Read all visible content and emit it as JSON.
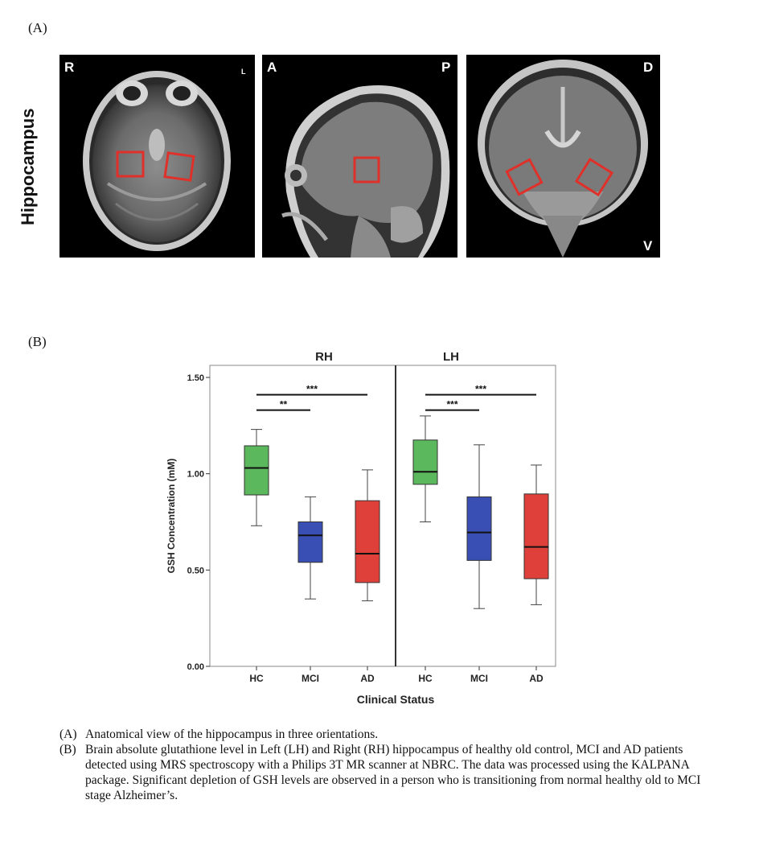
{
  "figure": {
    "panel_a_label": "(A)",
    "panel_b_label": "(B)",
    "region_label": "Hippocampus",
    "mri": {
      "axial": {
        "orient_left": "R",
        "orient_right": "L"
      },
      "sagittal": {
        "orient_left": "A",
        "orient_right": "P"
      },
      "coronal": {
        "orient_top": "D",
        "orient_bottom": "V"
      },
      "roi_color": "#e0302a"
    }
  },
  "chart_data": {
    "type": "box",
    "ylabel": "GSH Concentration (mM)",
    "xlabel": "Clinical Status",
    "ylim": [
      0,
      1.5
    ],
    "yticks": [
      "0.00",
      "0.50",
      "1.00",
      "1.50"
    ],
    "panels": [
      {
        "title": "RH",
        "groups": [
          {
            "name": "HC",
            "color": "#5cb85c",
            "min": 0.73,
            "q1": 0.89,
            "median": 1.03,
            "q3": 1.145,
            "max": 1.23
          },
          {
            "name": "MCI",
            "color": "#3a4fb4",
            "min": 0.35,
            "q1": 0.54,
            "median": 0.68,
            "q3": 0.75,
            "max": 0.88
          },
          {
            "name": "AD",
            "color": "#e0403a",
            "min": 0.34,
            "q1": 0.435,
            "median": 0.585,
            "q3": 0.86,
            "max": 1.02
          }
        ],
        "significance": [
          {
            "from": "HC",
            "to": "AD",
            "label": "***",
            "y": 1.41
          },
          {
            "from": "HC",
            "to": "MCI",
            "label": "**",
            "y": 1.33
          }
        ]
      },
      {
        "title": "LH",
        "groups": [
          {
            "name": "HC",
            "color": "#5cb85c",
            "min": 0.75,
            "q1": 0.945,
            "median": 1.01,
            "q3": 1.175,
            "max": 1.3
          },
          {
            "name": "MCI",
            "color": "#3a4fb4",
            "min": 0.3,
            "q1": 0.55,
            "median": 0.695,
            "q3": 0.88,
            "max": 1.15
          },
          {
            "name": "AD",
            "color": "#e0403a",
            "min": 0.32,
            "q1": 0.455,
            "median": 0.62,
            "q3": 0.895,
            "max": 1.045
          }
        ],
        "significance": [
          {
            "from": "HC",
            "to": "AD",
            "label": "***",
            "y": 1.41
          },
          {
            "from": "HC",
            "to": "MCI",
            "label": "***",
            "y": 1.33
          }
        ]
      }
    ]
  },
  "caption": {
    "a_key": "(A)",
    "a_text": "Anatomical view of the hippocampus in three orientations.",
    "b_key": "(B)",
    "b_text": "Brain absolute glutathione level in Left (LH) and Right (RH) hippocampus of healthy old control, MCI and AD patients detected using MRS spectroscopy with a Philips 3T MR scanner at NBRC. The data was processed using the KALPANA package. Significant depletion of GSH levels are observed in a person who is transitioning from normal healthy old to MCI stage Alzheimer’s."
  }
}
